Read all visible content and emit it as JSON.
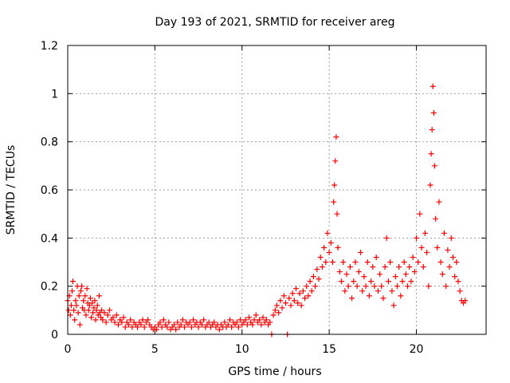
{
  "chart_data": {
    "type": "scatter",
    "title": "Day 193 of 2021, SRMTID for receiver areg",
    "xlabel": "GPS time / hours",
    "ylabel": "SRMTID / TECUs",
    "xlim": [
      0,
      24
    ],
    "ylim": [
      0,
      1.2
    ],
    "x_ticks": [
      0,
      5,
      10,
      15,
      20
    ],
    "x_tick_labels": [
      "0",
      "5",
      "10",
      "15",
      "20"
    ],
    "y_ticks": [
      0,
      0.2,
      0.4,
      0.6,
      0.8,
      1.0,
      1.2
    ],
    "y_tick_labels": [
      "0",
      "0.2",
      "0.4",
      "0.6",
      "0.8",
      "1",
      "1.2"
    ],
    "grid": true,
    "marker": "+",
    "colors": {
      "series": "#ff0000",
      "grid": "#a0a0a0",
      "axis": "#000000"
    },
    "series": [
      {
        "name": "SRMTID",
        "points": [
          [
            0.0,
            0.14
          ],
          [
            0.05,
            0.1
          ],
          [
            0.1,
            0.16
          ],
          [
            0.15,
            0.08
          ],
          [
            0.2,
            0.12
          ],
          [
            0.25,
            0.18
          ],
          [
            0.3,
            0.22
          ],
          [
            0.35,
            0.1
          ],
          [
            0.4,
            0.06
          ],
          [
            0.45,
            0.14
          ],
          [
            0.5,
            0.12
          ],
          [
            0.55,
            0.2
          ],
          [
            0.6,
            0.09
          ],
          [
            0.65,
            0.16
          ],
          [
            0.7,
            0.04
          ],
          [
            0.75,
            0.18
          ],
          [
            0.8,
            0.2
          ],
          [
            0.85,
            0.11
          ],
          [
            0.9,
            0.14
          ],
          [
            0.95,
            0.1
          ],
          [
            1.0,
            0.16
          ],
          [
            1.05,
            0.08
          ],
          [
            1.1,
            0.19
          ],
          [
            1.15,
            0.13
          ],
          [
            1.2,
            0.1
          ],
          [
            1.25,
            0.12
          ],
          [
            1.3,
            0.15
          ],
          [
            1.35,
            0.07
          ],
          [
            1.4,
            0.13
          ],
          [
            1.45,
            0.09
          ],
          [
            1.5,
            0.11
          ],
          [
            1.55,
            0.14
          ],
          [
            1.6,
            0.06
          ],
          [
            1.65,
            0.1
          ],
          [
            1.7,
            0.12
          ],
          [
            1.75,
            0.08
          ],
          [
            1.8,
            0.16
          ],
          [
            1.85,
            0.09
          ],
          [
            1.9,
            0.07
          ],
          [
            1.95,
            0.1
          ],
          [
            2.0,
            0.06
          ],
          [
            2.1,
            0.09
          ],
          [
            2.2,
            0.05
          ],
          [
            2.3,
            0.08
          ],
          [
            2.4,
            0.1
          ],
          [
            2.5,
            0.06
          ],
          [
            2.6,
            0.07
          ],
          [
            2.7,
            0.05
          ],
          [
            2.8,
            0.08
          ],
          [
            2.9,
            0.04
          ],
          [
            3.0,
            0.06
          ],
          [
            3.1,
            0.05
          ],
          [
            3.2,
            0.07
          ],
          [
            3.3,
            0.03
          ],
          [
            3.4,
            0.05
          ],
          [
            3.5,
            0.04
          ],
          [
            3.6,
            0.06
          ],
          [
            3.7,
            0.03
          ],
          [
            3.8,
            0.05
          ],
          [
            3.9,
            0.04
          ],
          [
            4.0,
            0.03
          ],
          [
            4.1,
            0.05
          ],
          [
            4.2,
            0.04
          ],
          [
            4.3,
            0.06
          ],
          [
            4.4,
            0.03
          ],
          [
            4.5,
            0.05
          ],
          [
            4.6,
            0.06
          ],
          [
            4.7,
            0.04
          ],
          [
            4.8,
            0.03
          ],
          [
            4.9,
            0.02
          ],
          [
            5.0,
            0.03
          ],
          [
            5.1,
            0.02
          ],
          [
            5.2,
            0.04
          ],
          [
            5.3,
            0.05
          ],
          [
            5.4,
            0.03
          ],
          [
            5.5,
            0.06
          ],
          [
            5.6,
            0.04
          ],
          [
            5.7,
            0.03
          ],
          [
            5.8,
            0.05
          ],
          [
            5.9,
            0.02
          ],
          [
            6.0,
            0.03
          ],
          [
            6.1,
            0.04
          ],
          [
            6.2,
            0.02
          ],
          [
            6.3,
            0.05
          ],
          [
            6.4,
            0.03
          ],
          [
            6.5,
            0.04
          ],
          [
            6.6,
            0.06
          ],
          [
            6.7,
            0.03
          ],
          [
            6.8,
            0.05
          ],
          [
            6.9,
            0.04
          ],
          [
            7.0,
            0.05
          ],
          [
            7.1,
            0.03
          ],
          [
            7.2,
            0.06
          ],
          [
            7.3,
            0.04
          ],
          [
            7.4,
            0.05
          ],
          [
            7.5,
            0.03
          ],
          [
            7.6,
            0.05
          ],
          [
            7.7,
            0.04
          ],
          [
            7.8,
            0.06
          ],
          [
            7.9,
            0.03
          ],
          [
            8.0,
            0.04
          ],
          [
            8.1,
            0.05
          ],
          [
            8.2,
            0.03
          ],
          [
            8.3,
            0.04
          ],
          [
            8.4,
            0.05
          ],
          [
            8.5,
            0.03
          ],
          [
            8.6,
            0.04
          ],
          [
            8.7,
            0.02
          ],
          [
            8.8,
            0.04
          ],
          [
            8.9,
            0.03
          ],
          [
            9.0,
            0.05
          ],
          [
            9.1,
            0.03
          ],
          [
            9.2,
            0.04
          ],
          [
            9.3,
            0.06
          ],
          [
            9.4,
            0.03
          ],
          [
            9.5,
            0.05
          ],
          [
            9.6,
            0.04
          ],
          [
            9.7,
            0.05
          ],
          [
            9.8,
            0.03
          ],
          [
            9.9,
            0.06
          ],
          [
            10.0,
            0.04
          ],
          [
            10.1,
            0.05
          ],
          [
            10.2,
            0.06
          ],
          [
            10.3,
            0.04
          ],
          [
            10.4,
            0.07
          ],
          [
            10.5,
            0.05
          ],
          [
            10.6,
            0.04
          ],
          [
            10.7,
            0.06
          ],
          [
            10.8,
            0.08
          ],
          [
            10.9,
            0.05
          ],
          [
            11.0,
            0.06
          ],
          [
            11.1,
            0.04
          ],
          [
            11.2,
            0.07
          ],
          [
            11.3,
            0.05
          ],
          [
            11.4,
            0.06
          ],
          [
            11.5,
            0.04
          ],
          [
            11.6,
            0.05
          ],
          [
            11.7,
            0.0
          ],
          [
            11.8,
            0.08
          ],
          [
            11.9,
            0.1
          ],
          [
            12.0,
            0.12
          ],
          [
            12.1,
            0.09
          ],
          [
            12.2,
            0.14
          ],
          [
            12.3,
            0.11
          ],
          [
            12.4,
            0.16
          ],
          [
            12.5,
            0.13
          ],
          [
            12.6,
            0.0
          ],
          [
            12.7,
            0.15
          ],
          [
            12.8,
            0.12
          ],
          [
            12.9,
            0.17
          ],
          [
            13.0,
            0.14
          ],
          [
            13.1,
            0.19
          ],
          [
            13.2,
            0.13
          ],
          [
            13.3,
            0.17
          ],
          [
            13.4,
            0.12
          ],
          [
            13.5,
            0.18
          ],
          [
            13.6,
            0.15
          ],
          [
            13.7,
            0.2
          ],
          [
            13.8,
            0.16
          ],
          [
            13.9,
            0.22
          ],
          [
            14.0,
            0.18
          ],
          [
            14.1,
            0.24
          ],
          [
            14.2,
            0.2
          ],
          [
            14.3,
            0.27
          ],
          [
            14.4,
            0.23
          ],
          [
            14.5,
            0.32
          ],
          [
            14.6,
            0.28
          ],
          [
            14.7,
            0.36
          ],
          [
            14.8,
            0.3
          ],
          [
            14.9,
            0.42
          ],
          [
            15.0,
            0.34
          ],
          [
            15.1,
            0.38
          ],
          [
            15.2,
            0.3
          ],
          [
            15.25,
            0.55
          ],
          [
            15.3,
            0.62
          ],
          [
            15.35,
            0.72
          ],
          [
            15.4,
            0.82
          ],
          [
            15.45,
            0.5
          ],
          [
            15.5,
            0.36
          ],
          [
            15.6,
            0.26
          ],
          [
            15.7,
            0.22
          ],
          [
            15.8,
            0.3
          ],
          [
            15.9,
            0.18
          ],
          [
            16.0,
            0.25
          ],
          [
            16.1,
            0.2
          ],
          [
            16.2,
            0.28
          ],
          [
            16.3,
            0.15
          ],
          [
            16.4,
            0.22
          ],
          [
            16.5,
            0.3
          ],
          [
            16.6,
            0.2
          ],
          [
            16.7,
            0.26
          ],
          [
            16.8,
            0.34
          ],
          [
            16.9,
            0.18
          ],
          [
            17.0,
            0.24
          ],
          [
            17.1,
            0.2
          ],
          [
            17.2,
            0.3
          ],
          [
            17.3,
            0.16
          ],
          [
            17.4,
            0.22
          ],
          [
            17.5,
            0.28
          ],
          [
            17.6,
            0.2
          ],
          [
            17.7,
            0.32
          ],
          [
            17.8,
            0.18
          ],
          [
            17.9,
            0.25
          ],
          [
            18.0,
            0.2
          ],
          [
            18.1,
            0.15
          ],
          [
            18.2,
            0.28
          ],
          [
            18.3,
            0.4
          ],
          [
            18.4,
            0.22
          ],
          [
            18.5,
            0.3
          ],
          [
            18.6,
            0.18
          ],
          [
            18.7,
            0.12
          ],
          [
            18.8,
            0.24
          ],
          [
            18.9,
            0.2
          ],
          [
            19.0,
            0.28
          ],
          [
            19.1,
            0.16
          ],
          [
            19.2,
            0.22
          ],
          [
            19.3,
            0.3
          ],
          [
            19.4,
            0.25
          ],
          [
            19.5,
            0.2
          ],
          [
            19.6,
            0.28
          ],
          [
            19.7,
            0.22
          ],
          [
            19.8,
            0.32
          ],
          [
            19.9,
            0.26
          ],
          [
            20.0,
            0.4
          ],
          [
            20.1,
            0.3
          ],
          [
            20.2,
            0.5
          ],
          [
            20.3,
            0.36
          ],
          [
            20.4,
            0.28
          ],
          [
            20.5,
            0.42
          ],
          [
            20.6,
            0.34
          ],
          [
            20.7,
            0.2
          ],
          [
            20.8,
            0.62
          ],
          [
            20.85,
            0.75
          ],
          [
            20.9,
            0.85
          ],
          [
            20.95,
            1.03
          ],
          [
            21.0,
            0.92
          ],
          [
            21.05,
            0.7
          ],
          [
            21.1,
            0.48
          ],
          [
            21.2,
            0.36
          ],
          [
            21.3,
            0.55
          ],
          [
            21.4,
            0.3
          ],
          [
            21.5,
            0.25
          ],
          [
            21.6,
            0.42
          ],
          [
            21.7,
            0.2
          ],
          [
            21.8,
            0.35
          ],
          [
            21.9,
            0.28
          ],
          [
            22.0,
            0.4
          ],
          [
            22.1,
            0.32
          ],
          [
            22.2,
            0.24
          ],
          [
            22.3,
            0.3
          ],
          [
            22.4,
            0.22
          ],
          [
            22.5,
            0.18
          ],
          [
            22.6,
            0.14
          ],
          [
            22.7,
            0.13
          ],
          [
            22.8,
            0.14
          ]
        ]
      }
    ]
  }
}
